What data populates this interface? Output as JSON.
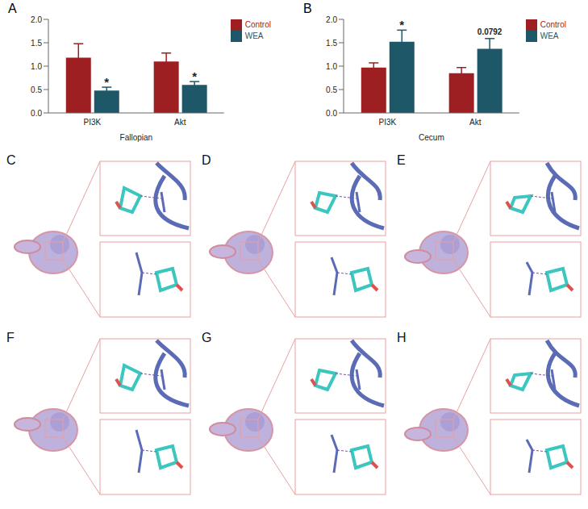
{
  "chart_data": [
    {
      "type": "bar",
      "panel": "A",
      "x_label": "Fallopian",
      "categories": [
        "PI3K",
        "Akt"
      ],
      "series": [
        {
          "name": "Control",
          "color": "#9e1f22",
          "values": [
            1.18,
            1.1
          ],
          "errors": [
            0.3,
            0.18
          ]
        },
        {
          "name": "WEA",
          "color": "#1e5868",
          "values": [
            0.48,
            0.6
          ],
          "errors": [
            0.07,
            0.07
          ]
        }
      ],
      "ylim": [
        0,
        2
      ],
      "yticks": [
        {
          "value": 0,
          "label": "0.0"
        },
        {
          "value": 0.5,
          "label": "0.5"
        },
        {
          "value": 1,
          "label": "1.0"
        },
        {
          "value": 1.5,
          "label": "1.5"
        },
        {
          "value": 2,
          "label": "2.0"
        }
      ],
      "legend": "right",
      "annotations": [
        {
          "category": "PI3K",
          "series": "WEA",
          "text": "*"
        },
        {
          "category": "Akt",
          "series": "WEA",
          "text": "*"
        }
      ]
    },
    {
      "type": "bar",
      "panel": "B",
      "x_label": "Cecum",
      "categories": [
        "PI3K",
        "Akt"
      ],
      "series": [
        {
          "name": "Control",
          "color": "#9e1f22",
          "values": [
            0.97,
            0.85
          ],
          "errors": [
            0.1,
            0.12
          ]
        },
        {
          "name": "WEA",
          "color": "#1e5868",
          "values": [
            1.52,
            1.37
          ],
          "errors": [
            0.25,
            0.22
          ]
        }
      ],
      "ylim": [
        0,
        2
      ],
      "yticks": [
        {
          "value": 0,
          "label": "0.0"
        },
        {
          "value": 0.5,
          "label": "0.5"
        },
        {
          "value": 1,
          "label": "1.0"
        },
        {
          "value": 1.5,
          "label": "1.5"
        },
        {
          "value": 2,
          "label": "2.0"
        }
      ],
      "legend": "right",
      "annotations": [
        {
          "category": "PI3K",
          "series": "WEA",
          "text": "*"
        },
        {
          "category": "Akt",
          "series": "WEA",
          "text": "0.0792"
        }
      ]
    }
  ],
  "docking_panels": [
    "C",
    "D",
    "E",
    "F",
    "G",
    "H"
  ]
}
